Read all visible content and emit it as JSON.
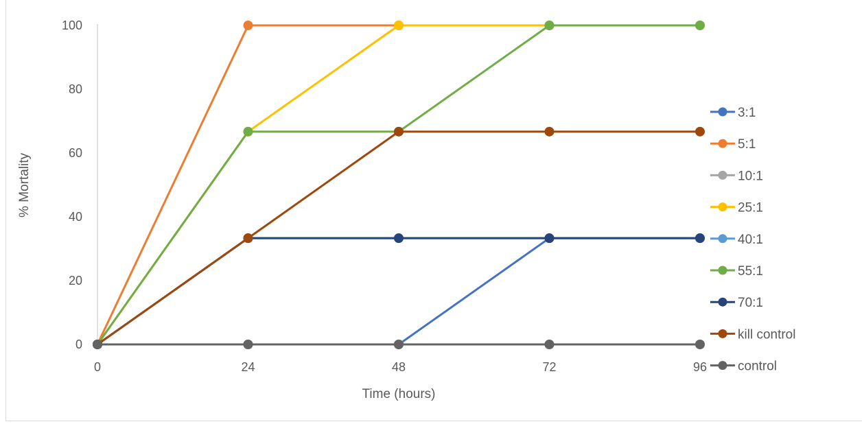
{
  "chart_data": {
    "type": "line",
    "title": "",
    "xlabel": "Time (hours)",
    "ylabel": "% Mortality",
    "x": [
      0,
      24,
      48,
      72,
      96
    ],
    "x_ticks": [
      "0",
      "24",
      "48",
      "72",
      "96"
    ],
    "y_ticks": [
      "0",
      "20",
      "40",
      "60",
      "80",
      "100"
    ],
    "ylim": [
      0,
      100
    ],
    "grid": false,
    "legend_position": "right",
    "series": [
      {
        "name": "3:1",
        "color": "#4472C4",
        "values": [
          0,
          0,
          0,
          33.3,
          33.3
        ]
      },
      {
        "name": "5:1",
        "color": "#ED7D31",
        "values": [
          0,
          100,
          100,
          100,
          100
        ]
      },
      {
        "name": "10:1",
        "color": "#A5A5A5",
        "values": [
          0,
          0,
          0,
          0,
          0
        ]
      },
      {
        "name": "25:1",
        "color": "#FFC000",
        "values": [
          0,
          66.7,
          100,
          100,
          100
        ]
      },
      {
        "name": "40:1",
        "color": "#5B9BD5",
        "values": [
          0,
          33.3,
          33.3,
          33.3,
          33.3
        ]
      },
      {
        "name": "55:1",
        "color": "#70AD47",
        "values": [
          0,
          66.7,
          66.7,
          100,
          100
        ]
      },
      {
        "name": "70:1",
        "color": "#264478",
        "values": [
          0,
          33.3,
          33.3,
          33.3,
          33.3
        ]
      },
      {
        "name": "kill control",
        "color": "#9E480E",
        "values": [
          0,
          33.3,
          66.7,
          66.7,
          66.7
        ]
      },
      {
        "name": "control",
        "color": "#636363",
        "values": [
          0,
          0,
          0,
          0,
          0
        ]
      }
    ]
  }
}
